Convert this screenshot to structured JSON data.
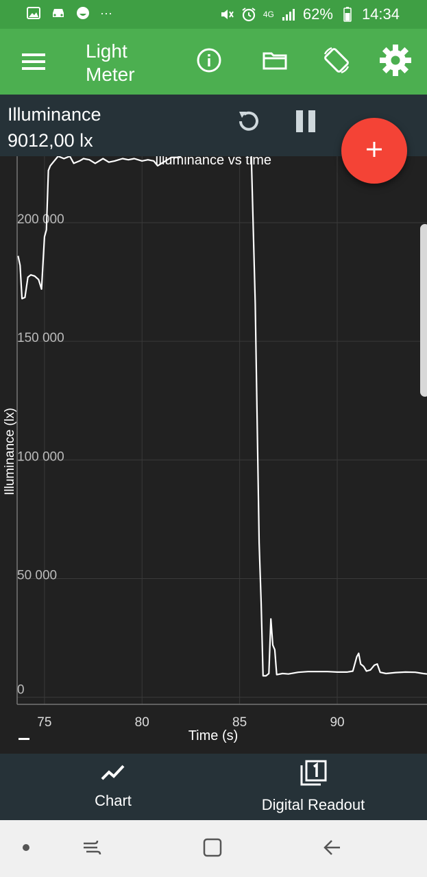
{
  "status_bar": {
    "dots": "···",
    "network": "4G",
    "battery": "62%",
    "time": "14:34",
    "icons": [
      "image-icon",
      "car-icon",
      "face-icon",
      "mute-icon",
      "alarm-icon",
      "signal-icon",
      "battery-icon"
    ]
  },
  "app_bar": {
    "title": "Light Meter",
    "color": "#4caf50",
    "icons": [
      "menu-icon",
      "info-icon",
      "folder-icon",
      "screen-rotation-icon",
      "settings-icon"
    ]
  },
  "readout": {
    "label": "Illuminance",
    "value": "9012,00 lx"
  },
  "controls": {
    "icons": [
      "reset-icon",
      "pause-icon",
      "add-icon"
    ],
    "fab_color": "#f44336"
  },
  "chart_data": {
    "type": "line",
    "title": "Illuminance vs time",
    "xlabel": "Time (s)",
    "ylabel": "Illuminance (lx)",
    "xlim": [
      73.6,
      94.6
    ],
    "ylim": [
      -3000,
      228000
    ],
    "x_ticks": [
      75,
      80,
      85,
      90
    ],
    "x_tick_labels": [
      "75",
      "80",
      "85",
      "90"
    ],
    "y_ticks": [
      0,
      50000,
      100000,
      150000,
      200000
    ],
    "y_tick_labels": [
      "0",
      "50 000",
      "100 000",
      "150 000",
      "200 000"
    ],
    "grid": true,
    "series": [
      {
        "color": "#ffffff",
        "points": [
          [
            73.65,
            186000
          ],
          [
            73.75,
            182000
          ],
          [
            73.85,
            168000
          ],
          [
            74.0,
            168500
          ],
          [
            74.15,
            177000
          ],
          [
            74.3,
            178000
          ],
          [
            74.5,
            177500
          ],
          [
            74.7,
            176000
          ],
          [
            74.85,
            172000
          ],
          [
            75.0,
            194000
          ],
          [
            75.1,
            197000
          ],
          [
            75.2,
            222000
          ],
          [
            75.3,
            224000
          ],
          [
            75.5,
            226000
          ],
          [
            75.7,
            228000
          ],
          [
            76.0,
            227000
          ],
          [
            76.3,
            228000
          ],
          [
            76.5,
            225000
          ],
          [
            76.8,
            226000
          ],
          [
            77.0,
            227000
          ],
          [
            77.3,
            226500
          ],
          [
            77.6,
            225000
          ],
          [
            78.0,
            227000
          ],
          [
            78.3,
            225500
          ],
          [
            78.6,
            226000
          ],
          [
            79.0,
            227000
          ],
          [
            79.3,
            226500
          ],
          [
            79.6,
            227000
          ],
          [
            80.0,
            226000
          ],
          [
            80.3,
            226500
          ],
          [
            80.6,
            226000
          ],
          [
            80.8,
            224000
          ],
          [
            81.0,
            225000
          ],
          [
            81.2,
            226000
          ],
          [
            81.5,
            227500
          ],
          [
            81.8,
            227500
          ],
          [
            82.0,
            228000
          ]
        ]
      },
      {
        "color": "#ffffff",
        "points": [
          [
            85.6,
            228000
          ],
          [
            85.8,
            166000
          ],
          [
            86.0,
            65000
          ],
          [
            86.1,
            40000
          ],
          [
            86.2,
            9000
          ],
          [
            86.35,
            9000
          ],
          [
            86.5,
            10000
          ],
          [
            86.6,
            33000
          ],
          [
            86.7,
            22000
          ],
          [
            86.8,
            20000
          ],
          [
            86.9,
            9500
          ],
          [
            87.2,
            10000
          ],
          [
            87.5,
            9800
          ],
          [
            88.0,
            10500
          ],
          [
            88.5,
            10800
          ],
          [
            89.0,
            10800
          ],
          [
            89.5,
            10800
          ],
          [
            90.0,
            10600
          ],
          [
            90.5,
            10600
          ],
          [
            90.8,
            11000
          ],
          [
            91.0,
            17000
          ],
          [
            91.1,
            18500
          ],
          [
            91.2,
            14000
          ],
          [
            91.35,
            13000
          ],
          [
            91.5,
            11000
          ],
          [
            91.7,
            11500
          ],
          [
            91.9,
            13500
          ],
          [
            92.05,
            14000
          ],
          [
            92.2,
            10500
          ],
          [
            92.5,
            10000
          ],
          [
            93.0,
            10400
          ],
          [
            93.5,
            10600
          ],
          [
            94.0,
            10500
          ],
          [
            94.4,
            10000
          ],
          [
            94.6,
            9800
          ]
        ]
      }
    ]
  },
  "bottom_nav": {
    "items": [
      {
        "label": "Chart",
        "icon": "chart-line-icon"
      },
      {
        "label": "Digital Readout",
        "icon": "digital-readout-icon"
      }
    ]
  },
  "system_nav": {
    "icons": [
      "dot-icon",
      "recent-apps-icon",
      "home-icon",
      "back-icon"
    ]
  }
}
